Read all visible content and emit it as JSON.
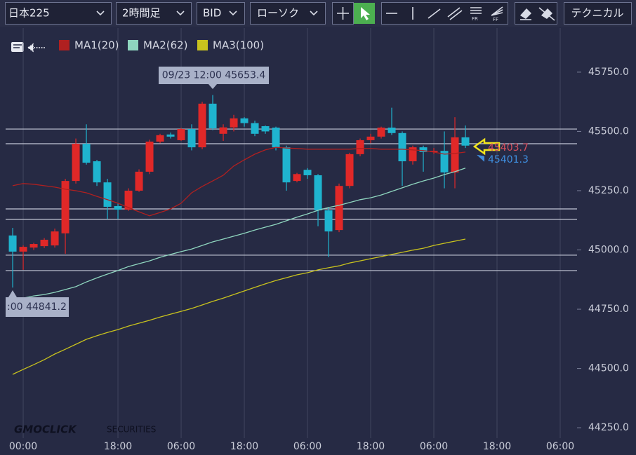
{
  "toolbar": {
    "symbol": "日本225",
    "timeframe": "2時間足",
    "price_type": "BID",
    "chart_style": "ローソク",
    "technical": "テクニカル"
  },
  "chart_data": {
    "type": "candlestick",
    "up_color": "#e02828",
    "down_color": "#1fb4cf",
    "xlim": [
      -0.67,
      53.6
    ],
    "xticks": [
      {
        "value": 1,
        "label": "00:00"
      },
      {
        "value": 10,
        "label": "18:00"
      },
      {
        "value": 16,
        "label": "06:00"
      },
      {
        "value": 22,
        "label": "18:00"
      },
      {
        "value": 28,
        "label": "06:00"
      },
      {
        "value": 34,
        "label": "18:00"
      },
      {
        "value": 40,
        "label": "06:00"
      },
      {
        "value": 46,
        "label": "18:00"
      },
      {
        "value": 52,
        "label": "06:00"
      }
    ],
    "ylim": [
      44206,
      45936
    ],
    "yticks": [
      {
        "value": 45750,
        "label": "45750.0"
      },
      {
        "value": 45500,
        "label": "45500.0"
      },
      {
        "value": 45250,
        "label": "45250.0"
      },
      {
        "value": 45000,
        "label": "45000.0"
      },
      {
        "value": 44750,
        "label": "44750.0"
      },
      {
        "value": 44500,
        "label": "44500.0"
      },
      {
        "value": 44250,
        "label": "44250.0"
      }
    ],
    "grid": "x",
    "open": [
      45061,
      44993,
      45010,
      45016,
      45019,
      45070,
      45291,
      45448,
      45374,
      45285,
      45185,
      45170,
      45250,
      45330,
      45457,
      45487,
      45463,
      45510,
      45433,
      45617,
      45490,
      45517,
      45555,
      45535,
      45522,
      45516,
      45433,
      45291,
      45338,
      45315,
      45167,
      45084,
      45270,
      45404,
      45463,
      45478,
      45516,
      45493,
      45374,
      45433,
      45413,
      45418,
      45327,
      45475
    ],
    "high": [
      45093,
      45019,
      45030,
      45050,
      45090,
      45300,
      45470,
      45530,
      45380,
      45300,
      45195,
      45260,
      45340,
      45465,
      45490,
      45495,
      45515,
      45530,
      45625,
      45653.4,
      45530,
      45570,
      45560,
      45545,
      45525,
      45520,
      45440,
      45325,
      45345,
      45320,
      45180,
      45280,
      45410,
      45470,
      45490,
      45520,
      45600,
      45500,
      45440,
      45440,
      45430,
      45500,
      45560,
      45525
    ],
    "low": [
      44841.2,
      44916,
      45000,
      45008,
      45010,
      44984,
      45280,
      45360,
      45270,
      45130,
      45130,
      45165,
      45245,
      45320,
      45450,
      45470,
      45460,
      45420,
      45425,
      45505,
      45460,
      45500,
      45520,
      45480,
      45490,
      45420,
      45250,
      45285,
      45300,
      45100,
      44970,
      45075,
      45260,
      45395,
      45450,
      45470,
      45485,
      45270,
      45360,
      45330,
      45405,
      45260,
      45260,
      45430
    ],
    "close": [
      44993,
      45013,
      45025,
      45043,
      45078,
      45291,
      45448,
      45368,
      45285,
      45182,
      45170,
      45250,
      45330,
      45457,
      45484,
      45478,
      45510,
      45433,
      45617,
      45513,
      45517,
      45555,
      45535,
      45490,
      45500,
      45433,
      45285,
      45320,
      45315,
      45167,
      45078,
      45270,
      45404,
      45463,
      45478,
      45516,
      45493,
      45374,
      45433,
      45413,
      45418,
      45327,
      45475,
      45440
    ],
    "series": [
      {
        "name": "MA1(20)",
        "color": "#b02020",
        "values": [
          45271,
          45280,
          45277,
          45271,
          45265,
          45256,
          45250,
          45241,
          45226,
          45212,
          45197,
          45179,
          45161,
          45144,
          45158,
          45173,
          45197,
          45241,
          45268,
          45291,
          45315,
          45354,
          45380,
          45404,
          45422,
          45433,
          45430,
          45428,
          45425,
          45425,
          45425,
          45425,
          45425,
          45428,
          45428,
          45425,
          45425,
          45425,
          45422,
          45419,
          45413,
          45404,
          45407,
          45413
        ]
      },
      {
        "name": "MA2(62)",
        "color": "#8fd6bf",
        "values": [
          44791,
          44797,
          44806,
          44812,
          44821,
          44833,
          44845,
          44865,
          44882,
          44898,
          44913,
          44930,
          44942,
          44954,
          44969,
          44981,
          44993,
          45004,
          45019,
          45034,
          45046,
          45058,
          45070,
          45084,
          45096,
          45108,
          45123,
          45138,
          45152,
          45167,
          45179,
          45188,
          45200,
          45212,
          45220,
          45232,
          45247,
          45262,
          45277,
          45291,
          45303,
          45318,
          45330,
          45345
        ]
      },
      {
        "name": "MA3(100)",
        "color": "#c8c21e",
        "values": [
          44475,
          44496,
          44516,
          44537,
          44561,
          44581,
          44602,
          44623,
          44638,
          44652,
          44664,
          44679,
          44691,
          44703,
          44717,
          44729,
          44741,
          44753,
          44768,
          44783,
          44797,
          44812,
          44827,
          44842,
          44857,
          44871,
          44883,
          44895,
          44904,
          44916,
          44925,
          44933,
          44945,
          44954,
          44963,
          44972,
          44981,
          44990,
          44999,
          45007,
          45019,
          45028,
          45037,
          45046
        ]
      }
    ],
    "horizontal_lines": [
      45510,
      45448,
      45173,
      45129,
      44978,
      44913
    ],
    "price_tags": [
      {
        "value": 45403.7,
        "color": "#d9505e"
      },
      {
        "value": 45401.3,
        "color": "#3f8fe0"
      }
    ],
    "callouts": [
      {
        "label": "09/23 12:00 45653.4"
      },
      {
        "label": ":00 44841.2"
      }
    ],
    "watermark": {
      "brand": "GMOCLICK",
      "suffix": "SECURITIES"
    }
  }
}
